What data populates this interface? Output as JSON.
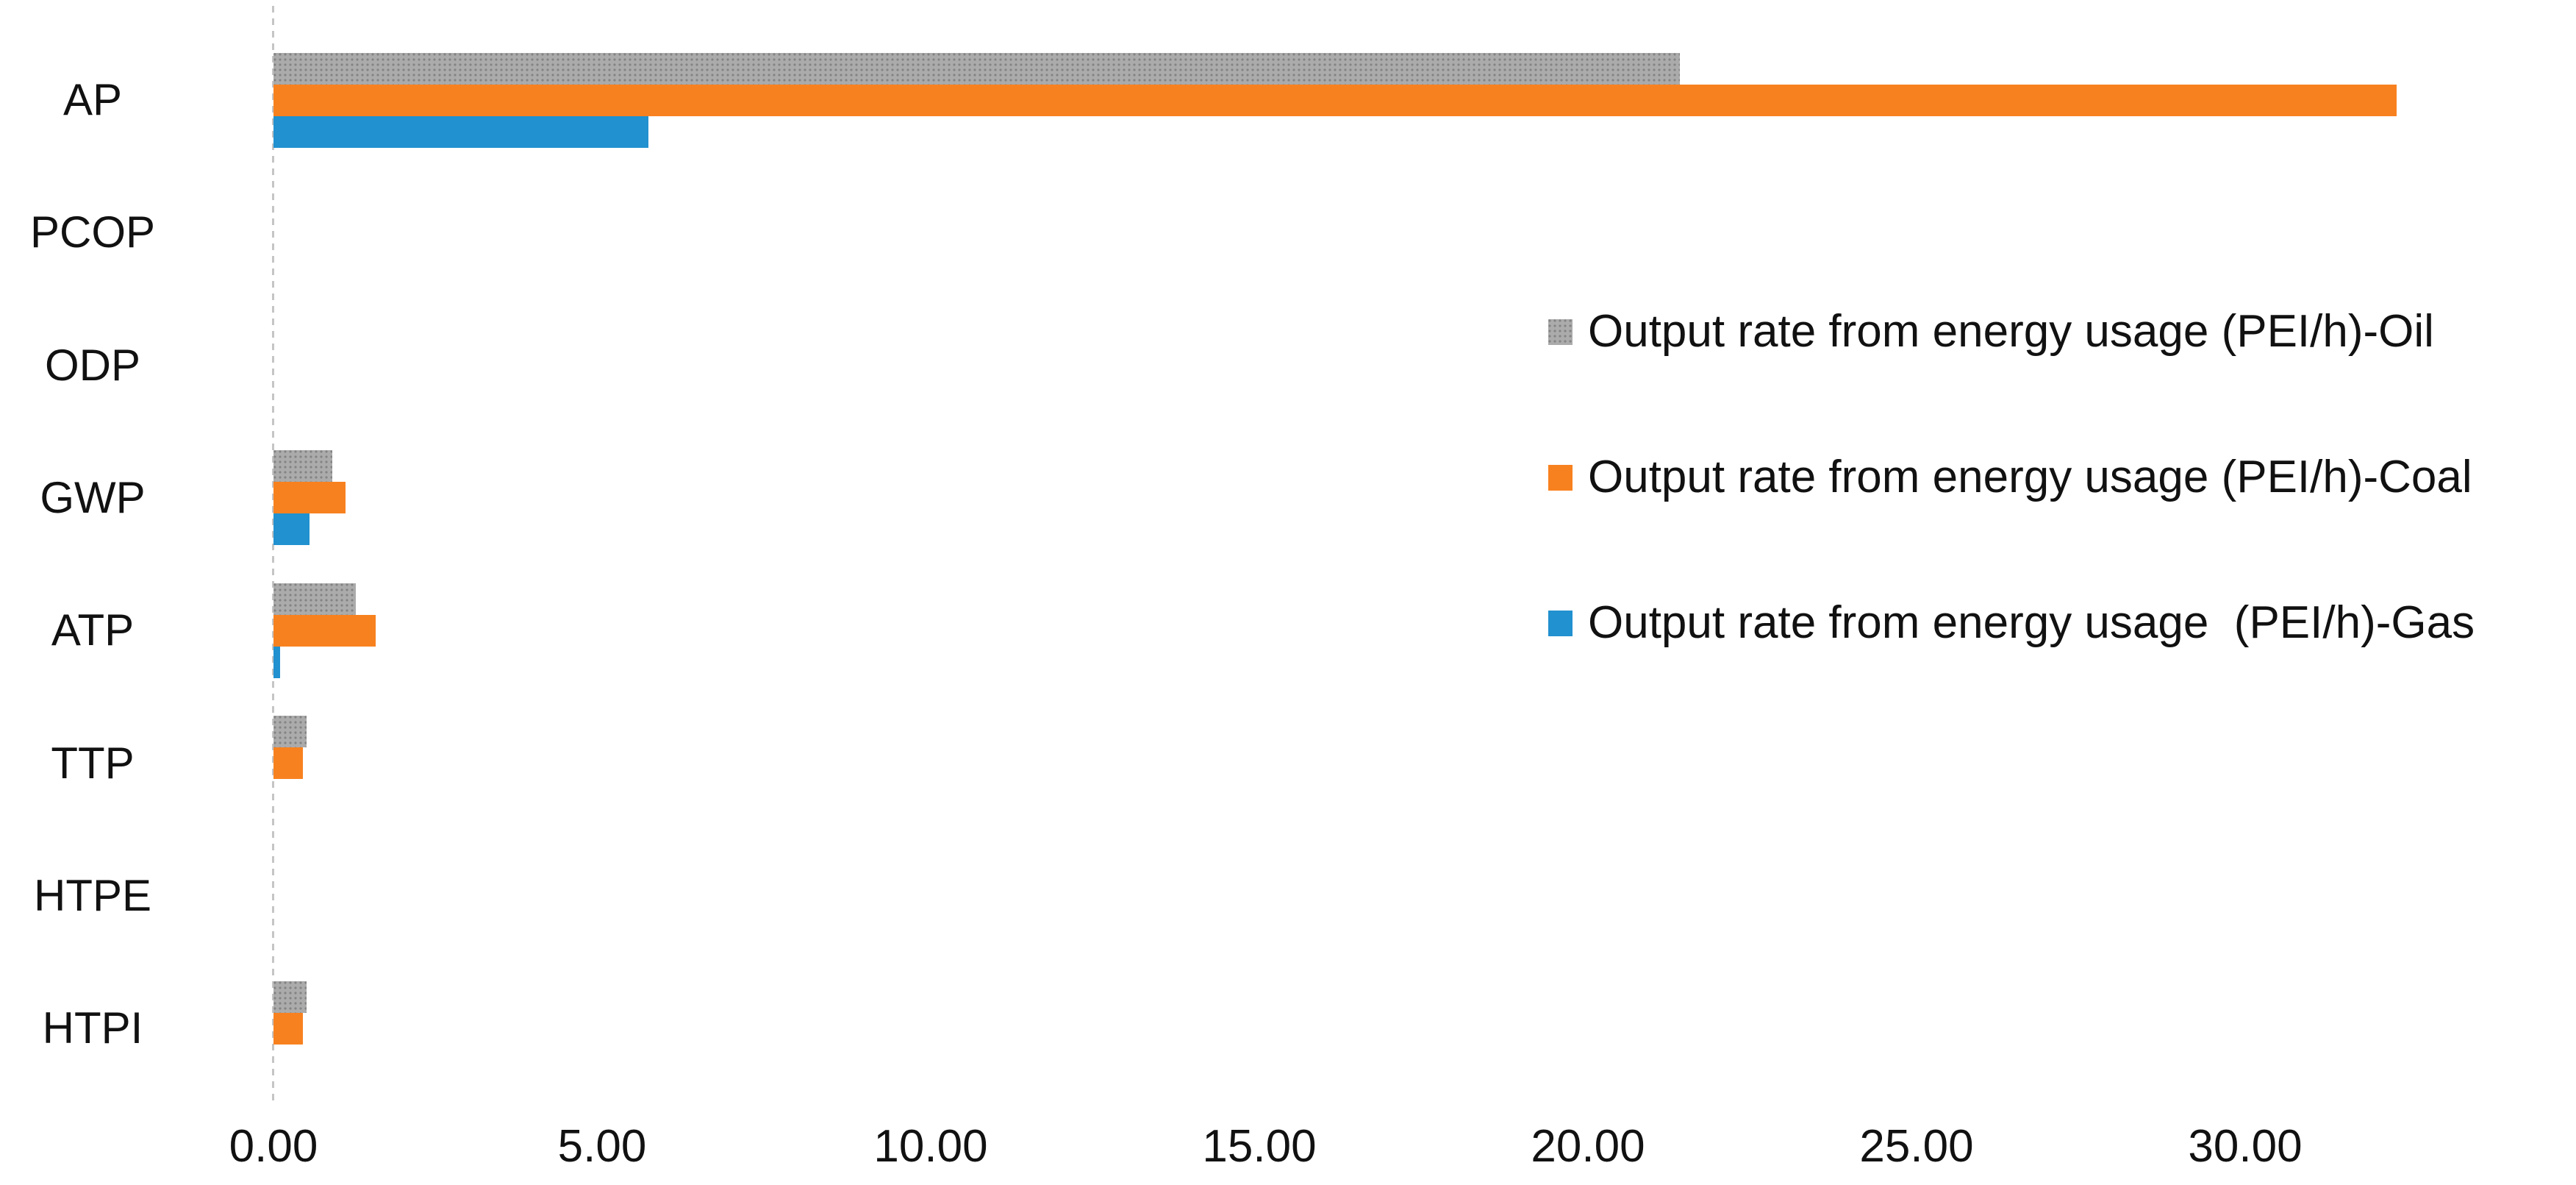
{
  "chart_data": {
    "type": "bar",
    "orientation": "horizontal",
    "title": "",
    "xlabel": "",
    "ylabel": "",
    "categories": [
      "AP",
      "PCOP",
      "ODP",
      "GWP",
      "ATP",
      "TTP",
      "HTPE",
      "HTPI"
    ],
    "series": [
      {
        "name": "Output rate from energy usage (PEI/h)-Oil",
        "key": "oil",
        "color": "#ABABAB",
        "pattern": "dots",
        "values": [
          21.4,
          0,
          0,
          0.9,
          1.25,
          0.5,
          0,
          0.5
        ]
      },
      {
        "name": "Output rate from energy usage (PEI/h)-Coal",
        "key": "coal",
        "color": "#F8811F",
        "pattern": "solid",
        "values": [
          32.3,
          0,
          0,
          1.1,
          1.55,
          0.45,
          0,
          0.45
        ]
      },
      {
        "name": "Output rate from energy usage  (PEI/h)-Gas",
        "key": "gas",
        "color": "#2191D0",
        "pattern": "solid",
        "values": [
          5.7,
          0,
          0,
          0.55,
          0.1,
          0,
          0,
          0
        ]
      }
    ],
    "x_ticks": [
      "0.00",
      "5.00",
      "10.00",
      "15.00",
      "20.00",
      "25.00",
      "30.00"
    ],
    "xlim": [
      0,
      35
    ],
    "grid": false,
    "legend_position": "right",
    "axis_zero_line_color": "#C5C5C5",
    "text_color": "#111111",
    "background_color": "#FFFFFF"
  }
}
